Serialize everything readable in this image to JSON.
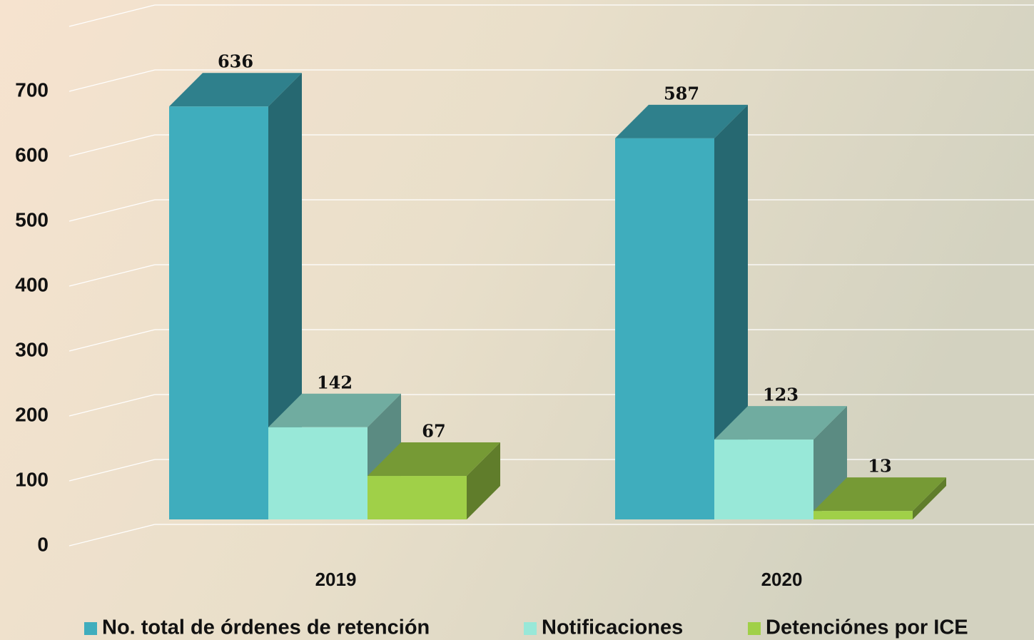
{
  "chart_data": {
    "type": "bar3d",
    "categories": [
      "2019",
      "2020"
    ],
    "series": [
      {
        "name": "No. total de órdenes de retención",
        "color": "#3fadbd",
        "values": [
          636,
          587
        ]
      },
      {
        "name": "Notificaciones",
        "color": "#98e8d8",
        "values": [
          142,
          123
        ]
      },
      {
        "name": "Detenciónes por ICE",
        "color": "#a0d048",
        "values": [
          67,
          13
        ]
      }
    ],
    "ylim": [
      0,
      800
    ],
    "yticks": [
      0,
      100,
      200,
      300,
      400,
      500,
      600,
      700
    ],
    "grid": true,
    "legend": "bottom"
  }
}
